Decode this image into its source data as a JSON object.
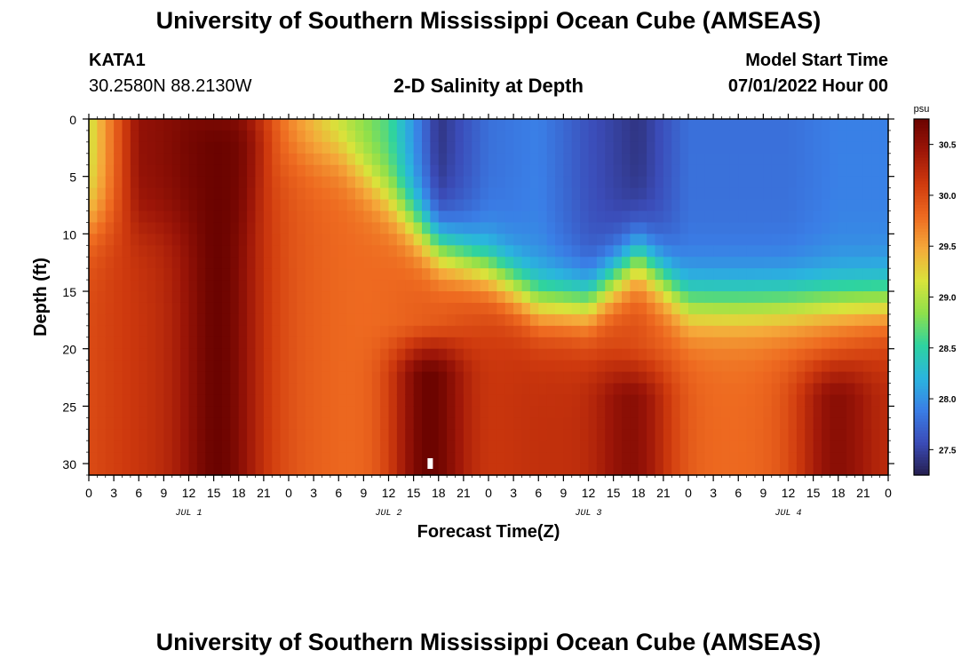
{
  "page": {
    "title": "University of Southern Mississippi Ocean Cube (AMSEAS)",
    "footer_title": "University of Southern Mississippi Ocean Cube (AMSEAS)",
    "station": "KATA1",
    "location": "30.2580N  88.2130W",
    "subtitle": "2-D Salinity at Depth",
    "model_start_label": "Model Start Time",
    "model_start_value": "07/01/2022 Hour 00"
  },
  "chart_data": {
    "type": "heatmap",
    "title": "2-D Salinity at Depth",
    "xlabel": "Forecast Time(Z)",
    "ylabel": "Depth (ft)",
    "x_tick_labels": [
      "0",
      "3",
      "6",
      "9",
      "12",
      "15",
      "18",
      "21",
      "0",
      "3",
      "6",
      "9",
      "12",
      "15",
      "18",
      "21",
      "0",
      "3",
      "6",
      "9",
      "12",
      "15",
      "18",
      "21",
      "0",
      "3",
      "6",
      "9",
      "12",
      "15",
      "18",
      "21",
      "0"
    ],
    "x_hours_range": [
      0,
      96
    ],
    "day_labels": [
      "JUL 1",
      "JUL 2",
      "JUL 3",
      "JUL 4"
    ],
    "y_ticks": [
      0,
      5,
      10,
      15,
      20,
      25,
      30
    ],
    "ylim": [
      0,
      31
    ],
    "y_inverted": true,
    "colorbar": {
      "unit": "psu",
      "ticks": [
        27.5,
        28.0,
        28.5,
        29.0,
        29.5,
        30.0,
        30.5
      ],
      "range": [
        27.25,
        30.75
      ]
    },
    "halocline_depth_ft": {
      "hours": [
        0,
        6,
        12,
        18,
        24,
        30,
        36,
        42,
        48,
        54,
        60,
        66,
        72,
        78,
        84,
        90,
        96
      ],
      "values": [
        9,
        9,
        9,
        9,
        3,
        3,
        7,
        11,
        13,
        16,
        16,
        12,
        16,
        16,
        16,
        16,
        16
      ]
    },
    "surface_salinity_psu": {
      "hours": [
        0,
        6,
        12,
        18,
        24,
        30,
        36,
        42,
        48,
        54,
        60,
        66,
        72,
        78,
        84,
        90,
        96
      ],
      "values": [
        29.1,
        30.5,
        30.6,
        30.5,
        29.6,
        29.0,
        28.6,
        27.4,
        27.8,
        27.9,
        27.6,
        27.4,
        27.8,
        27.8,
        27.8,
        27.9,
        27.9
      ]
    },
    "high_salinity_bands": [
      {
        "center_hour": 15.5,
        "depth_range_ft": [
          0,
          31
        ],
        "peak_psu": 30.75
      },
      {
        "center_hour": 41,
        "depth_range_ft": [
          20,
          31
        ],
        "peak_psu": 30.75
      },
      {
        "center_hour": 65,
        "depth_range_ft": [
          22,
          31
        ],
        "peak_psu": 30.55
      },
      {
        "center_hour": 90,
        "depth_range_ft": [
          22,
          31
        ],
        "peak_psu": 30.55
      }
    ],
    "current_time_marker_hour": 41
  },
  "colors": {
    "background": "#ffffff",
    "text": "#000000",
    "colormap": [
      "#251e4f",
      "#3b4cb8",
      "#3a7ee6",
      "#2ab5de",
      "#2ed3a0",
      "#8ee04b",
      "#d9e33b",
      "#f5a93a",
      "#ee6a20",
      "#cf3a0e",
      "#9d1608",
      "#6b0300"
    ]
  }
}
